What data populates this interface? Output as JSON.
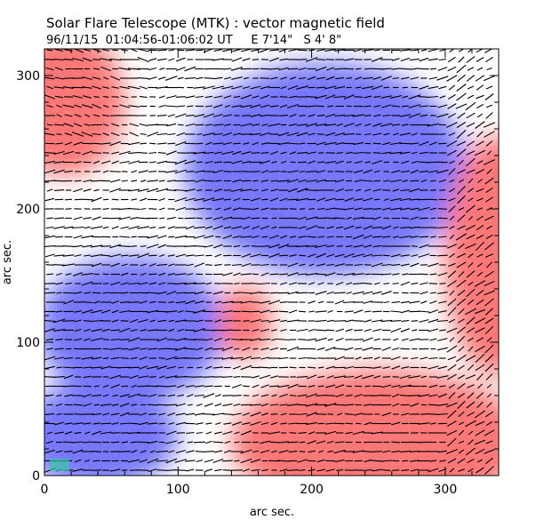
{
  "header": {
    "title": "Solar Flare Telescope (MTK) : vector magnetic field",
    "subtitle": "96/11/15  01:04:56-01:06:02 UT     E 7'14\"   S 4' 8\""
  },
  "chart_data": {
    "type": "heatmap",
    "title": "Solar Flare Telescope (MTK) : vector magnetic field",
    "subtitle": "96/11/15  01:04:56-01:06:02 UT     E 7'14\"   S 4' 8\"",
    "xlabel": "arc sec.",
    "ylabel": "arc sec.",
    "xlim": [
      0,
      340
    ],
    "ylim": [
      0,
      320
    ],
    "xticks": [
      0,
      100,
      200,
      300
    ],
    "yticks": [
      0,
      100,
      200,
      300
    ],
    "colors": {
      "positive": "#ff6f6f",
      "negative": "#6f6fff",
      "zero": "#ffffff",
      "vector": "#000000",
      "marker": "#38c8a0"
    },
    "regions": [
      {
        "name": "positive-upper-left",
        "polarity": 1,
        "cx": 15,
        "cy": 280,
        "rx": 45,
        "ry": 55
      },
      {
        "name": "negative-top-center",
        "polarity": -1,
        "cx": 210,
        "cy": 230,
        "rx": 105,
        "ry": 80
      },
      {
        "name": "positive-right",
        "polarity": 1,
        "cx": 340,
        "cy": 165,
        "rx": 40,
        "ry": 90
      },
      {
        "name": "negative-middle-left",
        "polarity": -1,
        "cx": 65,
        "cy": 110,
        "rx": 70,
        "ry": 55
      },
      {
        "name": "positive-center-spot",
        "polarity": 1,
        "cx": 150,
        "cy": 115,
        "rx": 20,
        "ry": 28
      },
      {
        "name": "positive-lower-right",
        "polarity": 1,
        "cx": 250,
        "cy": 25,
        "rx": 110,
        "ry": 55
      },
      {
        "name": "negative-lower-left",
        "polarity": -1,
        "cx": 40,
        "cy": 30,
        "rx": 60,
        "ry": 40
      }
    ],
    "vector_grid_step": 7
  }
}
